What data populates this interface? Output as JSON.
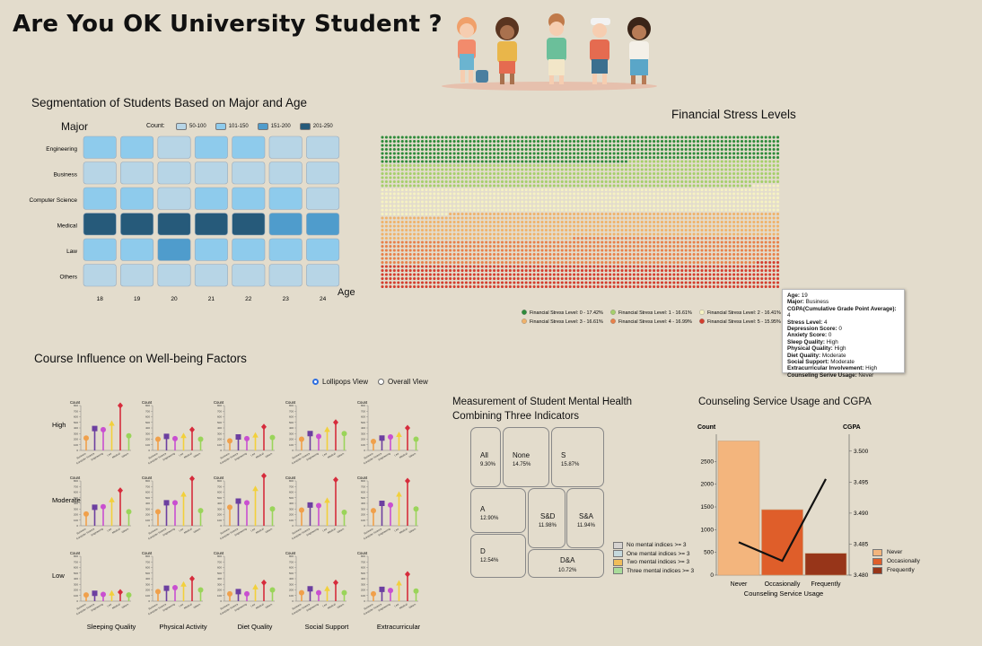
{
  "page": {
    "title": "Are You OK University Student ?"
  },
  "heatmap": {
    "title": "Segmentation of Students Based on Major and Age",
    "y_axis_title": "Major",
    "x_axis_title": "Age",
    "legend_title": "Count:",
    "legend": [
      {
        "label": "50-100",
        "color": "#b7d5e6"
      },
      {
        "label": "101-150",
        "color": "#8ecbec"
      },
      {
        "label": "151-200",
        "color": "#4f9ccc"
      },
      {
        "label": "201-250",
        "color": "#265a7a"
      }
    ]
  },
  "financial": {
    "title": "Financial Stress Levels",
    "legend": [
      {
        "label": "Financial Stress Level: 0 - 17.42%",
        "color": "#2e8b3a"
      },
      {
        "label": "Financial Stress Level: 1 - 16.61%",
        "color": "#a5cf6b"
      },
      {
        "label": "Financial Stress Level: 2 - 16.41%",
        "color": "#f6f2c2"
      },
      {
        "label": "Financial Stress Level: 3 - 16.61%",
        "color": "#f0b26a"
      },
      {
        "label": "Financial Stress Level: 4 - 16.99%",
        "color": "#e8814a"
      },
      {
        "label": "Financial Stress Level: 5 - 15.95%",
        "color": "#d43e2e"
      }
    ]
  },
  "tooltip": {
    "lines": [
      {
        "k": "Age:",
        "v": " 19"
      },
      {
        "k": "Major:",
        "v": " Business"
      },
      {
        "k": "CGPA(Cumulative Grade Point Average):",
        "v": " 4"
      },
      {
        "k": "Stress Level:",
        "v": " 4"
      },
      {
        "k": "Depression Score:",
        "v": " 0"
      },
      {
        "k": "Anxiety Score:",
        "v": " 0"
      },
      {
        "k": "Sleep Quality:",
        "v": " High"
      },
      {
        "k": "Physical Quality:",
        "v": " High"
      },
      {
        "k": "Diet Quality:",
        "v": " Moderate"
      },
      {
        "k": "Social Support:",
        "v": " Moderate"
      },
      {
        "k": "Extracurricular Involvement:",
        "v": " High"
      },
      {
        "k": "Counseling Serive Usage:",
        "v": " Never"
      }
    ]
  },
  "lollipop": {
    "title": "Course Influence on Well-being Factors",
    "view_options": [
      {
        "label": "Lollipops View",
        "selected": true
      },
      {
        "label": "Overall View",
        "selected": false
      }
    ],
    "count_label": "Count",
    "course_colors": [
      "#f0a04b",
      "#6c3fa0",
      "#c94fd0",
      "#f2d03b",
      "#d62c3c",
      "#9ad45a"
    ]
  },
  "treemap": {
    "title_line1": "Measurement of Student Mental Health",
    "title_line2": "Combining Three Indicators",
    "cells": [
      {
        "key": "All",
        "value": "9.30%",
        "color": "#a9dc9a"
      },
      {
        "key": "None",
        "value": "14.75%",
        "color": "#d6d3d0"
      },
      {
        "key": "S",
        "value": "15.87%",
        "color": "#c5d9dd"
      },
      {
        "key": "A",
        "value": "12.90%",
        "color": "#c5d9dd"
      },
      {
        "key": "S&D",
        "value": "11.98%",
        "color": "#f0bd5a"
      },
      {
        "key": "S&A",
        "value": "11.94%",
        "color": "#f0bd5a"
      },
      {
        "key": "D",
        "value": "12.54%",
        "color": "#c5d9dd"
      },
      {
        "key": "D&A",
        "value": "10.72%",
        "color": "#f0bd5a"
      }
    ],
    "legend": [
      {
        "label": "No mental indices >= 3",
        "color": "#d6d3d0"
      },
      {
        "label": "One mental indices >= 3",
        "color": "#c5d9dd"
      },
      {
        "label": "Two mental indices >= 3",
        "color": "#f0bd5a"
      },
      {
        "label": "Three mental indices >= 3",
        "color": "#a9dc9a"
      }
    ]
  },
  "counseling": {
    "title": "Counseling Service Usage and CGPA",
    "left_axis": "Count",
    "right_axis": "CGPA",
    "x_axis": "Counseling Service Usage",
    "legend": [
      {
        "label": "Never",
        "color": "#f3b57d"
      },
      {
        "label": "Occasionally",
        "color": "#df5e2a"
      },
      {
        "label": "Frequently",
        "color": "#973519"
      }
    ]
  },
  "chart_data": [
    {
      "type": "heatmap",
      "title": "Segmentation of Students Based on Major and Age",
      "xlabel": "Age",
      "ylabel": "Major",
      "x": [
        "18",
        "19",
        "20",
        "21",
        "22",
        "23",
        "24"
      ],
      "y": [
        "Engineering",
        "Business",
        "Computer Science",
        "Medical",
        "Law",
        "Others"
      ],
      "values": [
        [
          120,
          120,
          90,
          120,
          120,
          90,
          90
        ],
        [
          90,
          90,
          90,
          90,
          90,
          90,
          90
        ],
        [
          120,
          120,
          90,
          120,
          120,
          120,
          90
        ],
        [
          230,
          230,
          230,
          230,
          230,
          180,
          180
        ],
        [
          120,
          120,
          180,
          120,
          120,
          120,
          120
        ],
        [
          90,
          90,
          90,
          90,
          90,
          90,
          90
        ]
      ]
    },
    {
      "type": "waffle",
      "title": "Financial Stress Levels",
      "categories": [
        "0",
        "1",
        "2",
        "3",
        "4",
        "5"
      ],
      "values": [
        17.42,
        16.61,
        16.41,
        16.61,
        16.99,
        15.95
      ]
    },
    {
      "type": "lollipop",
      "title": "Course Influence on Well-being Factors",
      "columns": [
        "Sleeping Quality",
        "Physical Activity",
        "Diet Quality",
        "Social Support",
        "Extracurricular"
      ],
      "rows": [
        "High",
        "Moderate",
        "Low"
      ],
      "courses": [
        "Business",
        "Computer Science",
        "Engineering",
        "Law",
        "Medical",
        "Others"
      ],
      "ylim": [
        0,
        800
      ],
      "yticks": [
        0,
        100,
        200,
        300,
        400,
        500,
        600,
        700,
        800
      ],
      "values": [
        [
          [
            220,
            390,
            370,
            480,
            800,
            260
          ],
          [
            200,
            250,
            210,
            260,
            370,
            200
          ],
          [
            170,
            240,
            210,
            270,
            420,
            230
          ],
          [
            200,
            300,
            250,
            370,
            500,
            300
          ],
          [
            160,
            220,
            240,
            280,
            400,
            200
          ]
        ],
        [
          [
            210,
            330,
            340,
            460,
            630,
            250
          ],
          [
            250,
            410,
            410,
            560,
            840,
            270
          ],
          [
            330,
            440,
            410,
            660,
            890,
            300
          ],
          [
            280,
            370,
            360,
            450,
            820,
            240
          ],
          [
            270,
            400,
            370,
            560,
            800,
            300
          ]
        ],
        [
          [
            110,
            140,
            120,
            140,
            160,
            110
          ],
          [
            170,
            230,
            240,
            300,
            400,
            200
          ],
          [
            130,
            170,
            130,
            250,
            330,
            200
          ],
          [
            150,
            220,
            150,
            220,
            330,
            150
          ],
          [
            130,
            210,
            190,
            320,
            480,
            180
          ]
        ]
      ]
    },
    {
      "type": "bar",
      "title": "Counseling Service Usage and CGPA",
      "categories": [
        "Never",
        "Occasionally",
        "Frequently"
      ],
      "values": [
        2950,
        1440,
        480
      ],
      "ylim": [
        0,
        3000
      ],
      "yticks": [
        0,
        500,
        1000,
        1500,
        2000,
        2500
      ],
      "xlabel": "Counseling Service Usage",
      "ylabel": "Count",
      "line": {
        "name": "CGPA",
        "values": [
          3.4853,
          3.4823,
          3.4955
        ],
        "ylim": [
          3.48,
          3.502
        ],
        "yticks": [
          3.48,
          3.485,
          3.49,
          3.495,
          3.5
        ]
      }
    }
  ]
}
